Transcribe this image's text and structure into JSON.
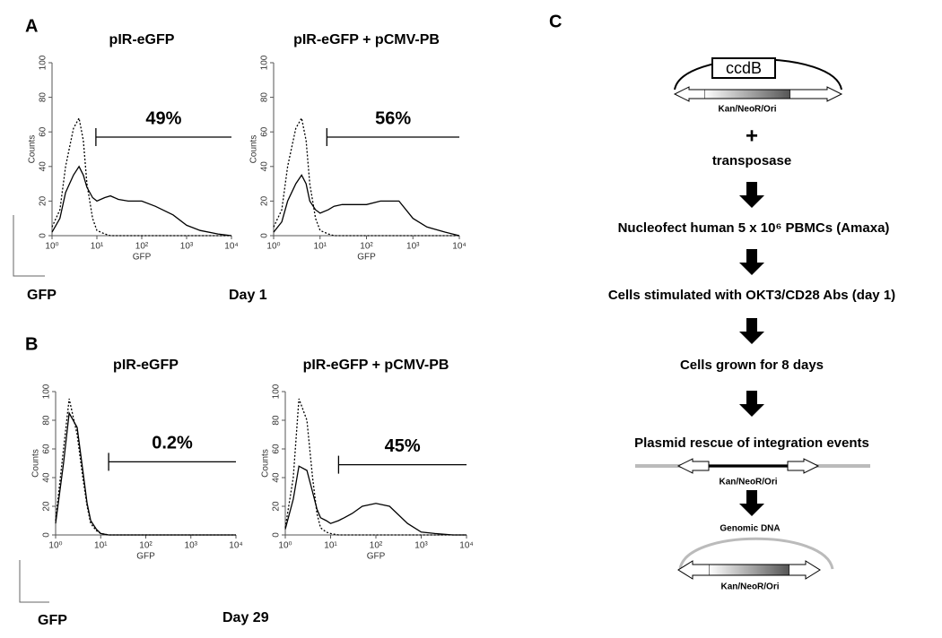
{
  "panels": {
    "a": "A",
    "b": "B",
    "c": "C"
  },
  "labels": {
    "gfp_a": "GFP",
    "day_a": "Day 1",
    "gfp_b": "GFP",
    "day_b": "Day 29"
  },
  "chart_data": [
    {
      "type": "line",
      "title": "pIR-eGFP",
      "xlabel": "GFP",
      "ylabel": "Counts",
      "log_x": true,
      "x": [
        1,
        1.5,
        2,
        3,
        4,
        5,
        6,
        8,
        10,
        15,
        20,
        30,
        50,
        100,
        200,
        500,
        1000,
        2000,
        5000,
        10000
      ],
      "series": [
        {
          "color": "#000000",
          "dashed": true,
          "values": [
            5,
            15,
            40,
            62,
            68,
            55,
            30,
            10,
            3,
            1,
            0,
            0,
            0,
            0,
            0,
            0,
            0,
            0,
            0,
            0
          ]
        },
        {
          "color": "#000000",
          "dashed": false,
          "values": [
            2,
            10,
            25,
            35,
            40,
            35,
            28,
            22,
            20,
            22,
            23,
            21,
            20,
            20,
            17,
            12,
            6,
            3,
            1,
            0
          ]
        }
      ],
      "gate": {
        "label": "49%",
        "x": [
          9.5,
          10000
        ],
        "y": 57
      },
      "xlim": [
        1,
        10000
      ],
      "ylim": [
        0,
        100
      ],
      "xticks": [
        {
          "value": 1,
          "label": "10⁰"
        },
        {
          "value": 10,
          "label": "10¹"
        },
        {
          "value": 100,
          "label": "10²"
        },
        {
          "value": 1000,
          "label": "10³"
        },
        {
          "value": 10000,
          "label": "10⁴"
        }
      ],
      "yticks": [
        0,
        20,
        40,
        60,
        80,
        100
      ]
    },
    {
      "type": "line",
      "title": "pIR-eGFP + pCMV-PB",
      "xlabel": "GFP",
      "ylabel": "Counts",
      "log_x": true,
      "x": [
        1,
        1.5,
        2,
        3,
        4,
        5,
        6,
        8,
        10,
        15,
        20,
        30,
        50,
        100,
        200,
        500,
        1000,
        2000,
        5000,
        10000
      ],
      "series": [
        {
          "color": "#000000",
          "dashed": true,
          "values": [
            5,
            15,
            40,
            62,
            68,
            55,
            30,
            10,
            3,
            1,
            0,
            0,
            0,
            0,
            0,
            0,
            0,
            0,
            0,
            0
          ]
        },
        {
          "color": "#000000",
          "dashed": false,
          "values": [
            2,
            8,
            20,
            30,
            35,
            30,
            20,
            15,
            13,
            15,
            17,
            18,
            18,
            18,
            20,
            20,
            10,
            5,
            2,
            0
          ]
        }
      ],
      "gate": {
        "label": "56%",
        "x": [
          14,
          10000
        ],
        "y": 57
      },
      "xlim": [
        1,
        10000
      ],
      "ylim": [
        0,
        100
      ],
      "xticks": [
        {
          "value": 1,
          "label": "10⁰"
        },
        {
          "value": 10,
          "label": "10¹"
        },
        {
          "value": 100,
          "label": "10²"
        },
        {
          "value": 1000,
          "label": "10³"
        },
        {
          "value": 10000,
          "label": "10⁴"
        }
      ],
      "yticks": [
        0,
        20,
        40,
        60,
        80,
        100
      ]
    },
    {
      "type": "line",
      "title": "pIR-eGFP",
      "xlabel": "GFP",
      "ylabel": "Counts",
      "log_x": true,
      "x": [
        1,
        1.5,
        2,
        3,
        4,
        5,
        6,
        8,
        10,
        15,
        20,
        30,
        50,
        100,
        200,
        500,
        1000,
        2000,
        5000,
        10000
      ],
      "series": [
        {
          "color": "#000000",
          "dashed": true,
          "values": [
            10,
            60,
            95,
            70,
            40,
            20,
            8,
            3,
            1,
            0,
            0,
            0,
            0,
            0,
            0,
            0,
            0,
            0,
            0,
            0
          ]
        },
        {
          "color": "#000000",
          "dashed": false,
          "values": [
            8,
            50,
            85,
            75,
            45,
            22,
            10,
            4,
            1,
            0,
            0,
            0,
            0,
            0,
            0,
            0,
            0,
            0,
            0,
            0
          ]
        }
      ],
      "gate": {
        "label": "0.2%",
        "x": [
          15,
          10000
        ],
        "y": 51
      },
      "xlim": [
        1,
        10000
      ],
      "ylim": [
        0,
        100
      ],
      "xticks": [
        {
          "value": 1,
          "label": "10⁰"
        },
        {
          "value": 10,
          "label": "10¹"
        },
        {
          "value": 100,
          "label": "10²"
        },
        {
          "value": 1000,
          "label": "10³"
        },
        {
          "value": 10000,
          "label": "10⁴"
        }
      ],
      "yticks": [
        0,
        20,
        40,
        60,
        80,
        100
      ]
    },
    {
      "type": "line",
      "title": "pIR-eGFP + pCMV-PB",
      "xlabel": "GFP",
      "ylabel": "Counts",
      "log_x": true,
      "x": [
        1,
        1.5,
        2,
        3,
        4,
        5,
        6,
        8,
        10,
        15,
        20,
        30,
        50,
        100,
        200,
        500,
        1000,
        2000,
        5000,
        10000
      ],
      "series": [
        {
          "color": "#000000",
          "dashed": true,
          "values": [
            5,
            40,
            95,
            80,
            40,
            15,
            5,
            2,
            1,
            0,
            0,
            0,
            0,
            0,
            0,
            0,
            0,
            0,
            0,
            0
          ]
        },
        {
          "color": "#000000",
          "dashed": false,
          "values": [
            4,
            25,
            48,
            45,
            30,
            18,
            12,
            10,
            8,
            10,
            12,
            15,
            20,
            22,
            20,
            8,
            2,
            1,
            0,
            0
          ]
        }
      ],
      "gate": {
        "label": "45%",
        "x": [
          15,
          10000
        ],
        "y": 49
      },
      "xlim": [
        1,
        10000
      ],
      "ylim": [
        0,
        100
      ],
      "xticks": [
        {
          "value": 1,
          "label": "10⁰"
        },
        {
          "value": 10,
          "label": "10¹"
        },
        {
          "value": 100,
          "label": "10²"
        },
        {
          "value": 1000,
          "label": "10³"
        },
        {
          "value": 10000,
          "label": "10⁴"
        }
      ],
      "yticks": [
        0,
        20,
        40,
        60,
        80,
        100
      ]
    }
  ],
  "diagram": {
    "insert": "ccdB",
    "plasmid_label": "Kan/NeoR/Ori",
    "plus": "+",
    "transposase": "transposase",
    "steps": [
      "Nucleofect human 5 x 10⁶ PBMCs (Amaxa)",
      "Cells stimulated with OKT3/CD28 Abs (day 1)",
      "Cells grown for 8 days",
      "Plasmid rescue of integration events"
    ],
    "rescued_label": "Kan/NeoR/Ori",
    "genomic_dna": "Genomic DNA",
    "final_label": "Kan/NeoR/Ori"
  }
}
